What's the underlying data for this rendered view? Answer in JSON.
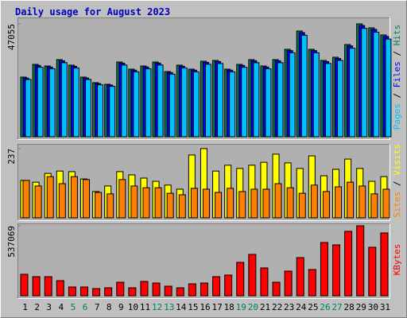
{
  "title": "Daily usage for August 2023",
  "legend_separator": " / ",
  "chart_data": [
    {
      "type": "bar",
      "ylim": [
        0,
        49706
      ],
      "yticks": [
        47055
      ],
      "series": [
        {
          "name": "Pages",
          "color": "#00c0ff",
          "values": [
            23860,
            28950,
            28310,
            30860,
            28640,
            23870,
            21640,
            21000,
            29900,
            27040,
            28310,
            29900,
            26080,
            28640,
            27040,
            30220,
            30540,
            27040,
            28950,
            30860,
            28310,
            30860,
            34990,
            42310,
            34990,
            30540,
            31810,
            36900,
            45170,
            43580,
            40720
          ]
        },
        {
          "name": "Files",
          "color": "#0000ff",
          "values": [
            24450,
            29700,
            29050,
            31650,
            29380,
            24480,
            22190,
            21540,
            30680,
            27740,
            29050,
            30680,
            26760,
            29380,
            27740,
            31000,
            31330,
            27740,
            29700,
            31660,
            29050,
            31660,
            35900,
            43410,
            35900,
            31330,
            32640,
            37860,
            46340,
            44720,
            41780
          ]
        },
        {
          "name": "Hits",
          "color": "#00805c",
          "values": [
            24860,
            30160,
            29490,
            32150,
            29830,
            24860,
            22540,
            21870,
            31150,
            28170,
            29490,
            31150,
            27170,
            29830,
            28170,
            31480,
            31810,
            28170,
            30160,
            32150,
            29490,
            32150,
            36450,
            44080,
            36450,
            31810,
            33140,
            38440,
            47055,
            45400,
            42420
          ]
        }
      ]
    },
    {
      "type": "bar",
      "ylim": [
        0,
        253
      ],
      "yticks": [
        237
      ],
      "series": [
        {
          "name": "Sites",
          "color": "#ff8000",
          "values": [
            128,
            109,
            141,
            117,
            141,
            131,
            87,
            82,
            131,
            109,
            103,
            103,
            84,
            79,
            101,
            98,
            87,
            101,
            90,
            98,
            98,
            117,
            103,
            84,
            112,
            90,
            106,
            122,
            109,
            82,
            98
          ]
        },
        {
          "name": "Visits",
          "color": "#ffff00",
          "values": [
            128,
            122,
            152,
            160,
            158,
            133,
            90,
            109,
            158,
            147,
            136,
            125,
            112,
            98,
            215,
            237,
            160,
            180,
            169,
            180,
            190,
            218,
            188,
            169,
            212,
            144,
            166,
            201,
            169,
            125,
            141
          ]
        }
      ]
    },
    {
      "type": "bar",
      "ylim": [
        0,
        555378
      ],
      "yticks": [
        537069
      ],
      "categories": [
        "1",
        "2",
        "3",
        "4",
        "5",
        "6",
        "7",
        "8",
        "9",
        "10",
        "11",
        "12",
        "13",
        "14",
        "15",
        "16",
        "17",
        "18",
        "19",
        "20",
        "21",
        "22",
        "23",
        "24",
        "25",
        "26",
        "27",
        "28",
        "29",
        "30",
        "31"
      ],
      "category_colors": [
        "#000000",
        "#000000",
        "#000000",
        "#000000",
        "#00805c",
        "#00805c",
        "#000000",
        "#000000",
        "#000000",
        "#000000",
        "#000000",
        "#00805c",
        "#00805c",
        "#000000",
        "#000000",
        "#000000",
        "#000000",
        "#000000",
        "#00805c",
        "#00805c",
        "#000000",
        "#000000",
        "#000000",
        "#000000",
        "#000000",
        "#00805c",
        "#00805c",
        "#000000",
        "#000000",
        "#000000",
        "#000000"
      ],
      "series": [
        {
          "name": "KBytes",
          "color": "#ff0000",
          "values": [
            164781,
            146472,
            146472,
            115957,
            67133,
            67133,
            54927,
            61030,
            103751,
            61030,
            109854,
            97648,
            73236,
            61030,
            91545,
            97648,
            146472,
            158678,
            256326,
            317356,
            213605,
            103751,
            189193,
            292944,
            201399,
            408901,
            390592,
            494343,
            537069,
            372283,
            482137
          ]
        }
      ]
    }
  ]
}
